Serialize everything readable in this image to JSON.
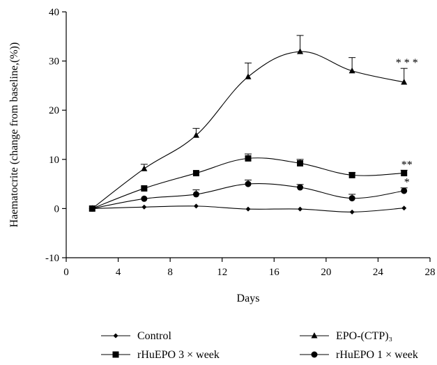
{
  "chart_data": {
    "type": "line",
    "xlabel": "Days",
    "ylabel": "Haematocrite (change from baseline,(%))",
    "xlim": [
      0,
      28
    ],
    "ylim": [
      -10,
      40
    ],
    "xticks": [
      0,
      4,
      8,
      12,
      16,
      20,
      24,
      28
    ],
    "yticks": [
      -10,
      0,
      10,
      20,
      30,
      40
    ],
    "grid": false,
    "legend_position": "bottom",
    "series": [
      {
        "name": "Control",
        "marker": "diamond",
        "x": [
          2,
          6,
          10,
          14,
          18,
          22,
          26
        ],
        "y": [
          0,
          0.3,
          0.5,
          -0.1,
          -0.1,
          -0.7,
          0.1
        ],
        "error": [
          0,
          0,
          0,
          0,
          0,
          0,
          0
        ]
      },
      {
        "name": "EPO-(CTP)₃",
        "marker": "triangle",
        "x": [
          2,
          6,
          10,
          14,
          18,
          22,
          26
        ],
        "y": [
          0,
          8.1,
          14.9,
          26.8,
          31.9,
          28.0,
          25.7
        ],
        "error": [
          0,
          0.9,
          1.4,
          2.8,
          3.3,
          2.7,
          2.8
        ],
        "annotation": "* * *"
      },
      {
        "name": "rHuEPO 3 × week",
        "marker": "square",
        "x": [
          2,
          6,
          10,
          14,
          18,
          22,
          26
        ],
        "y": [
          0,
          4.1,
          7.2,
          10.2,
          9.2,
          6.8,
          7.2
        ],
        "error": [
          0,
          0,
          0,
          0.9,
          0.8,
          0.5,
          0.6
        ],
        "annotation": "**"
      },
      {
        "name": "rHuEPO 1 × week",
        "marker": "circle",
        "x": [
          2,
          6,
          10,
          14,
          18,
          22,
          26
        ],
        "y": [
          0,
          2.0,
          2.9,
          5.0,
          4.3,
          2.1,
          3.6
        ],
        "error": [
          0,
          0,
          0.9,
          0.8,
          0.6,
          0.8,
          0.6
        ],
        "annotation": "*"
      }
    ]
  }
}
